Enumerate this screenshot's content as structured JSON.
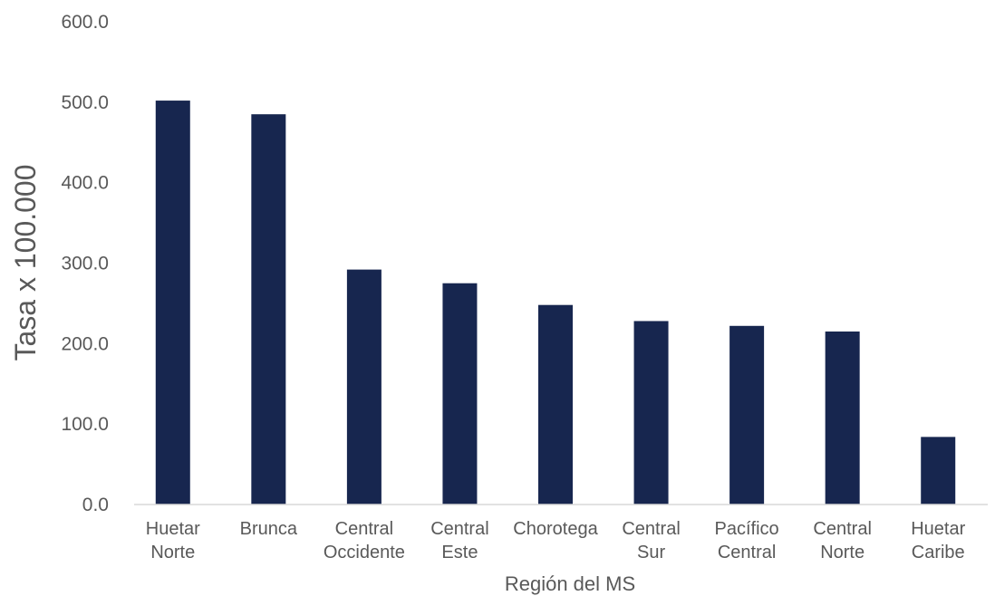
{
  "chart_data": {
    "type": "bar",
    "categories": [
      [
        "Huetar",
        "Norte"
      ],
      [
        "Brunca"
      ],
      [
        "Central",
        "Occidente"
      ],
      [
        "Central",
        "Este"
      ],
      [
        "Chorotega"
      ],
      [
        "Central",
        "Sur"
      ],
      [
        "Pacífico",
        "Central"
      ],
      [
        "Central",
        "Norte"
      ],
      [
        "Huetar",
        "Caribe"
      ]
    ],
    "values": [
      502,
      485,
      292,
      275,
      248,
      228,
      222,
      215,
      84
    ],
    "yticks": [
      "0.0",
      "100.0",
      "200.0",
      "300.0",
      "400.0",
      "500.0",
      "600.0"
    ],
    "ylim": [
      0,
      600
    ],
    "ylabel": "Tasa x 100.000",
    "xlabel": "Región del MS",
    "bar_color": "#17264f",
    "axis_color": "#d9d9d9",
    "grid": false,
    "legend": "none"
  }
}
